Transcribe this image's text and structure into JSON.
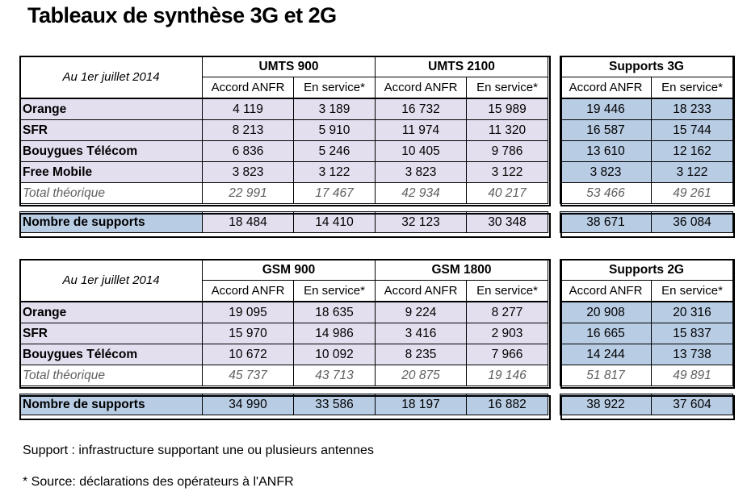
{
  "title": "Tableaux de synthèse 3G et 2G",
  "table3g": {
    "date_label": "Au 1er juillet 2014",
    "groups": [
      "UMTS 900",
      "UMTS 2100",
      "Supports 3G"
    ],
    "sub_accord": "Accord ANFR",
    "sub_service": "En service*",
    "rows": [
      {
        "label": "Orange",
        "values": [
          "4 119",
          "3 189",
          "16 732",
          "15 989",
          "19 446",
          "18 233"
        ]
      },
      {
        "label": "SFR",
        "values": [
          "8 213",
          "5 910",
          "11 974",
          "11 320",
          "16 587",
          "15 744"
        ]
      },
      {
        "label": "Bouygues Télécom",
        "values": [
          "6 836",
          "5 246",
          "10 405",
          "9 786",
          "13 610",
          "12 162"
        ]
      },
      {
        "label": "Free Mobile",
        "values": [
          "3 823",
          "3 122",
          "3 823",
          "3 122",
          "3 823",
          "3 122"
        ]
      }
    ],
    "total": {
      "label": "Total théorique",
      "values": [
        "22 991",
        "17 467",
        "42 934",
        "40 217",
        "53 466",
        "49 261"
      ]
    },
    "supports": {
      "label": "Nombre de supports",
      "values": [
        "18 484",
        "14 410",
        "32 123",
        "30 348",
        "38 671",
        "36 084"
      ]
    }
  },
  "table2g": {
    "date_label": "Au 1er juillet 2014",
    "groups": [
      "GSM 900",
      "GSM 1800",
      "Supports 2G"
    ],
    "sub_accord": "Accord ANFR",
    "sub_service": "En service*",
    "rows": [
      {
        "label": "Orange",
        "values": [
          "19 095",
          "18 635",
          "9 224",
          "8 277",
          "20 908",
          "20 316"
        ]
      },
      {
        "label": "SFR",
        "values": [
          "15 970",
          "14 986",
          "3 416",
          "2 903",
          "16 665",
          "15 837"
        ]
      },
      {
        "label": "Bouygues Télécom",
        "values": [
          "10 672",
          "10 092",
          "8 235",
          "7 966",
          "14 244",
          "13 738"
        ]
      }
    ],
    "total": {
      "label": "Total théorique",
      "values": [
        "45 737",
        "43 713",
        "20 875",
        "19 146",
        "51 817",
        "49 891"
      ]
    },
    "supports": {
      "label": "Nombre de supports",
      "values": [
        "34 990",
        "33 586",
        "18 197",
        "16 882",
        "38 922",
        "37 604"
      ]
    }
  },
  "footnotes": {
    "support_def": "Support : infrastructure supportant une ou plusieurs antennes",
    "source": "* Source: déclarations des opérateurs à l'ANFR"
  },
  "colors": {
    "purple_fill": "#e4dfef",
    "blue_fill": "#b8cce4"
  }
}
